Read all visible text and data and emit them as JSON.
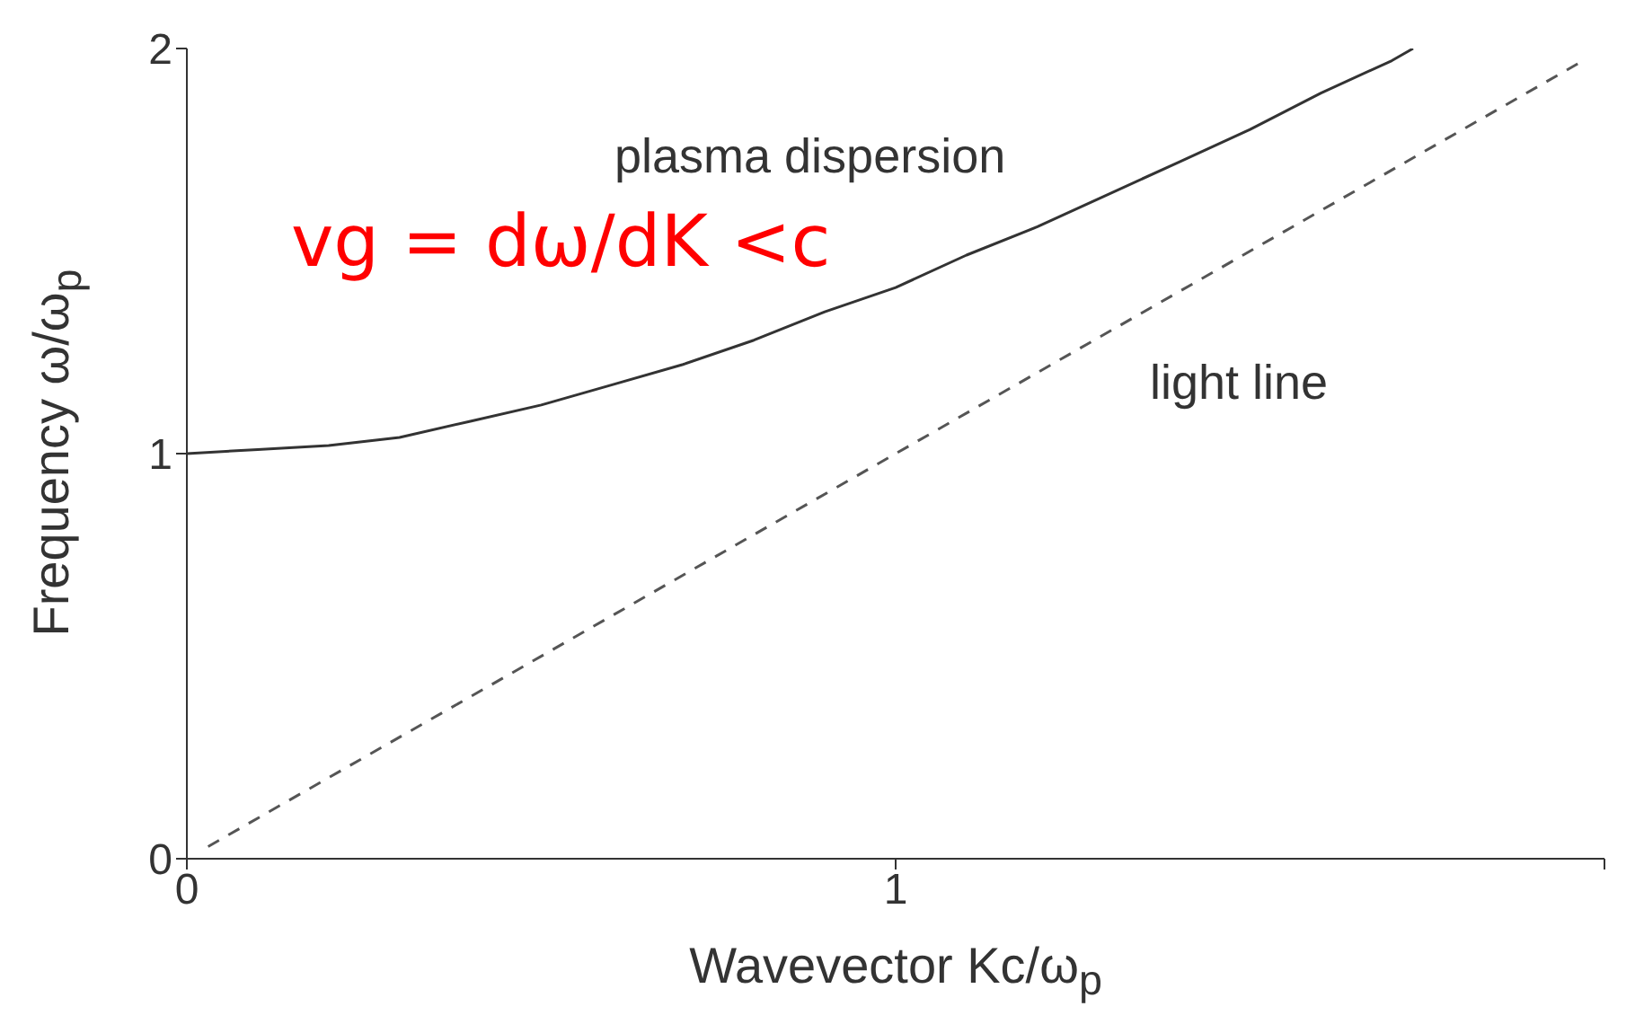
{
  "chart_data": {
    "type": "line",
    "xlabel": "Wavevector Kc/ω$_{p}$",
    "ylabel": "Frequency ω/ω$_{p}$",
    "xlim": [
      0,
      2
    ],
    "ylim": [
      0,
      2
    ],
    "xticks": [
      0,
      1,
      {
        "value": 2,
        "label": null
      }
    ],
    "yticks": [
      0,
      1,
      2
    ],
    "grid": false,
    "legend": false,
    "marker": "none",
    "annotations": [
      "plasma dispersion",
      "light line",
      "vg = dω/dK <c"
    ],
    "series": [
      {
        "color": "#333333",
        "line_style": "solid",
        "x": [
          0,
          0.1,
          0.2,
          0.3,
          0.4,
          0.5,
          0.6,
          0.7,
          0.8,
          0.9,
          1.0,
          1.1,
          1.2,
          1.3,
          1.4,
          1.5,
          1.6,
          1.7,
          1.73
        ],
        "values": [
          1,
          1.01,
          1.02,
          1.04,
          1.08,
          1.12,
          1.17,
          1.22,
          1.28,
          1.35,
          1.41,
          1.49,
          1.56,
          1.64,
          1.72,
          1.8,
          1.89,
          1.97,
          2
        ]
      },
      {
        "color": "#555555",
        "line_style": "dashed",
        "x": [
          0.03,
          1.97
        ],
        "values": [
          0.03,
          1.97
        ]
      }
    ]
  }
}
